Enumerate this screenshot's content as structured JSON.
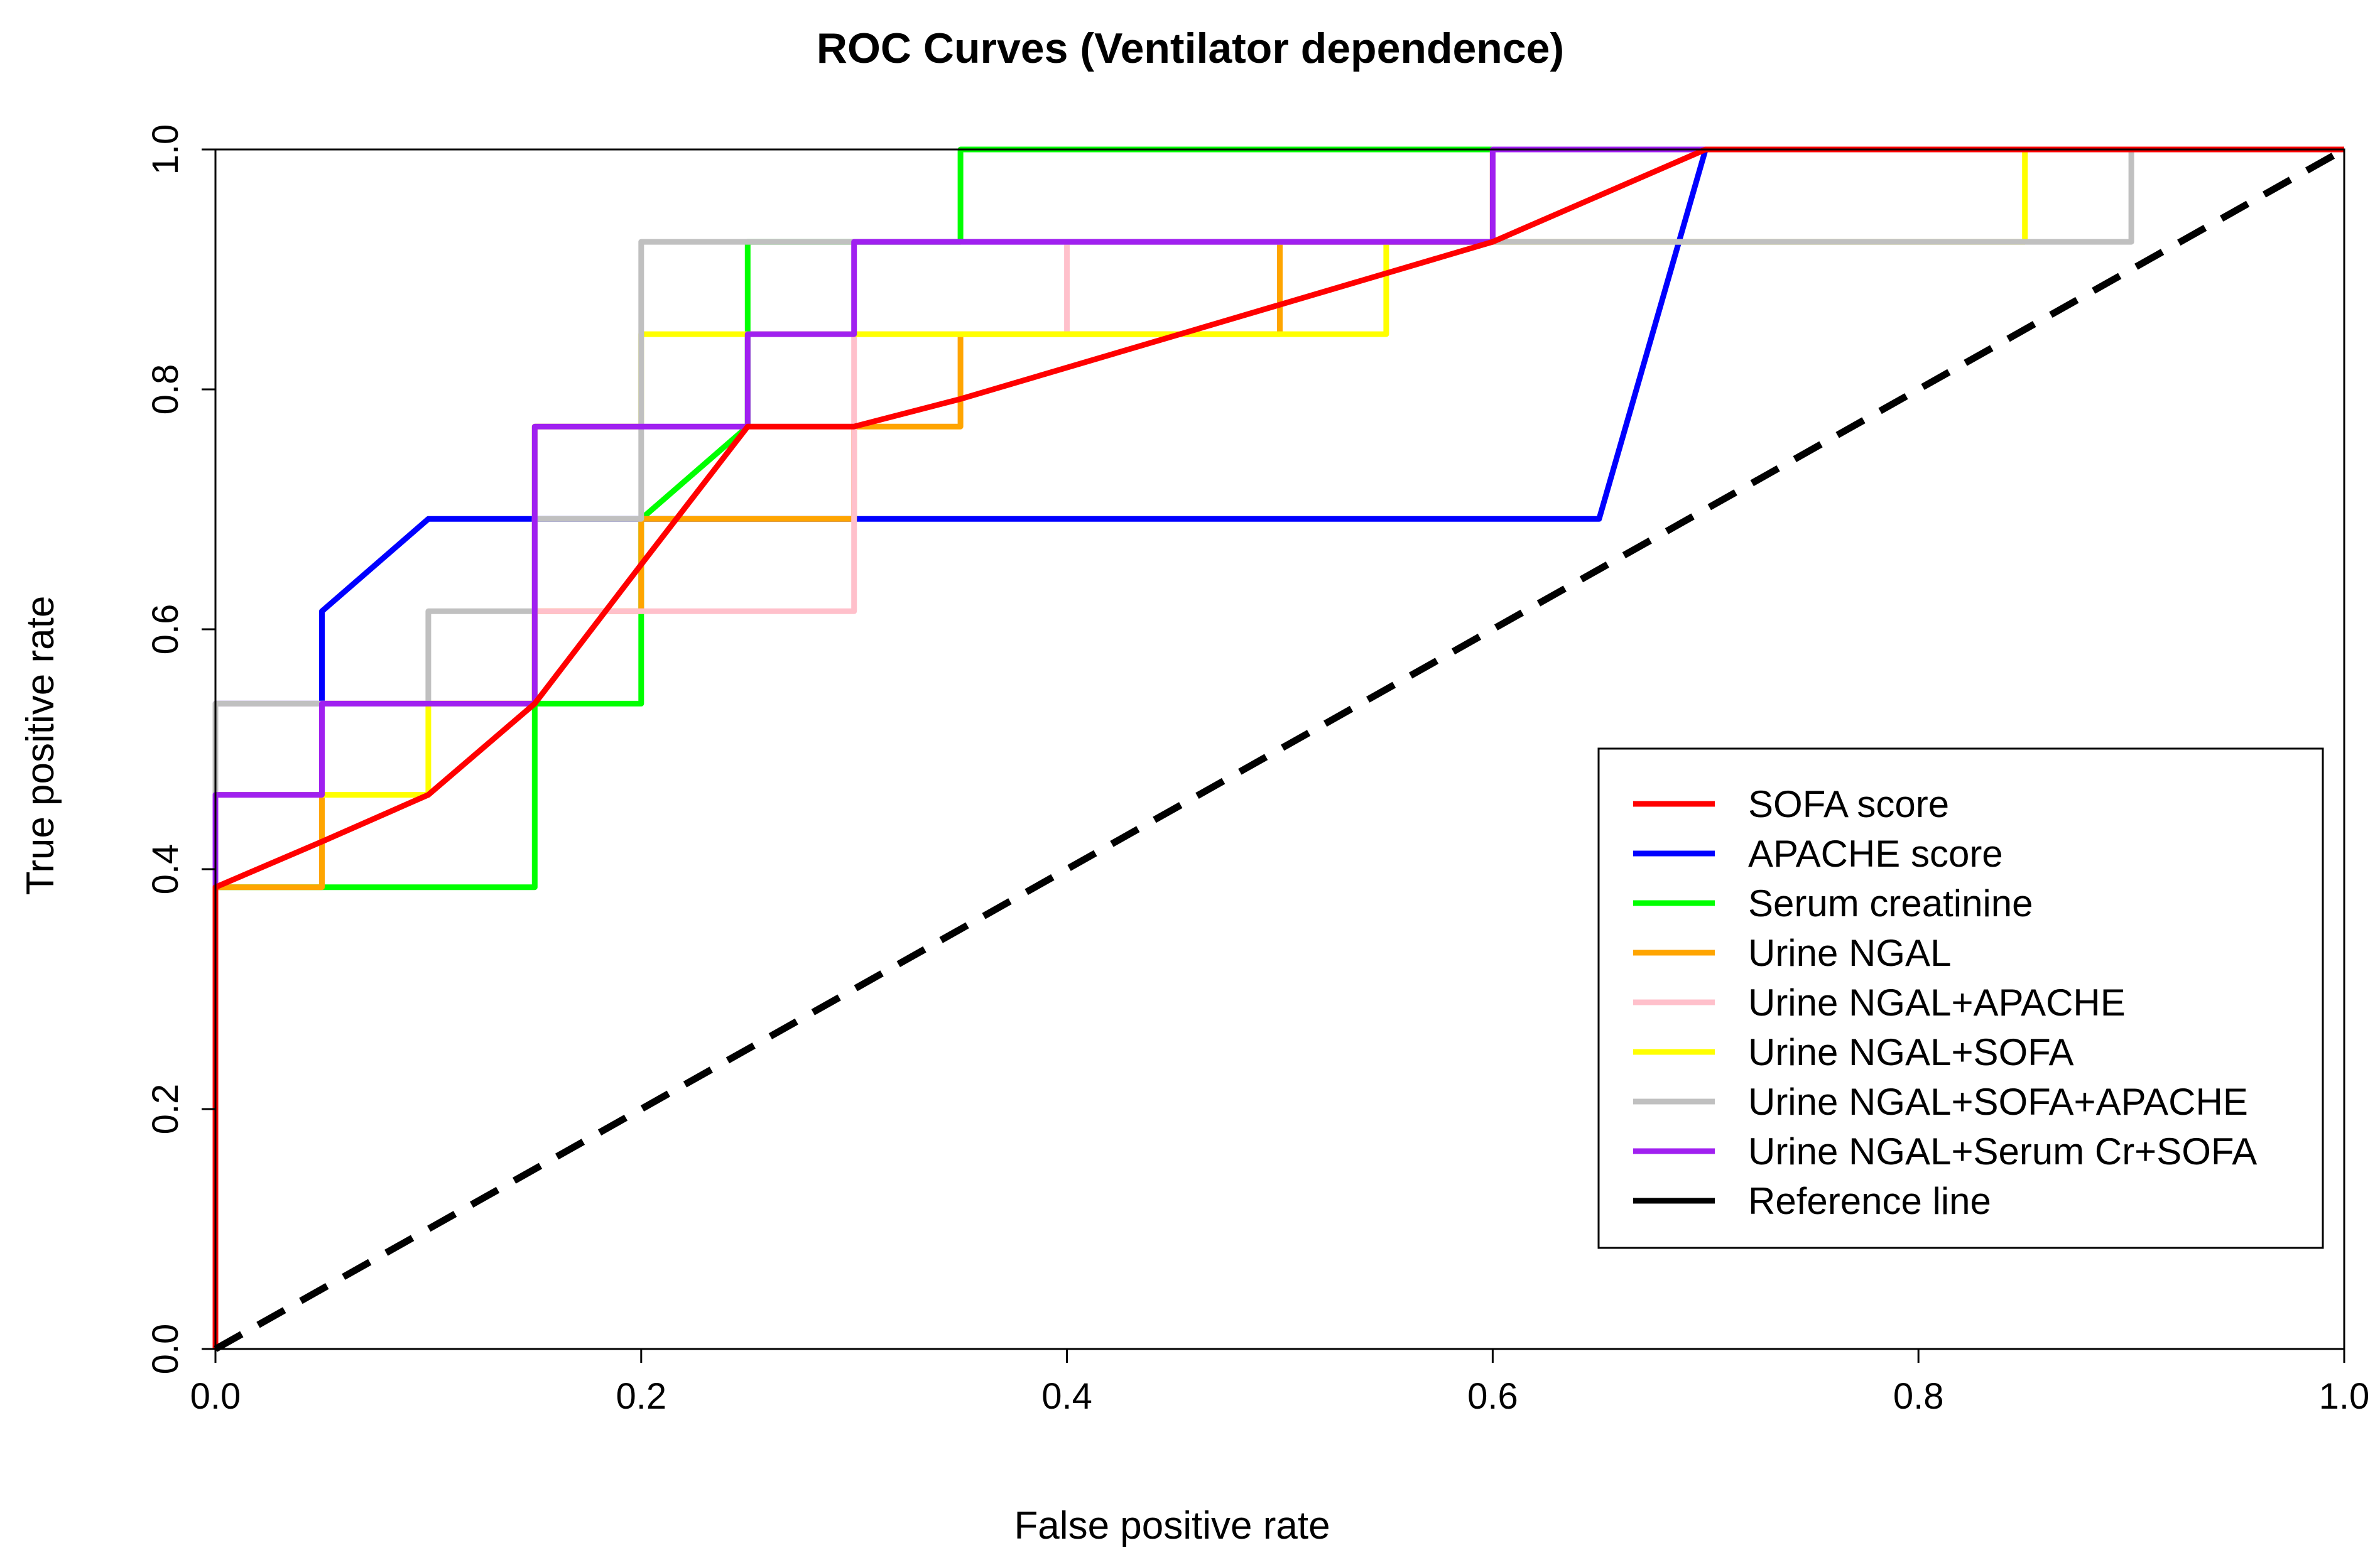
{
  "chart_data": {
    "type": "line",
    "title": "ROC Curves (Ventilator dependence)",
    "xlabel": "False positive rate",
    "ylabel": "True positive rate",
    "xlim": [
      0,
      1
    ],
    "ylim": [
      0,
      1
    ],
    "x_ticks": [
      "0.0",
      "0.2",
      "0.4",
      "0.6",
      "0.8",
      "1.0"
    ],
    "y_ticks": [
      "0.0",
      "0.2",
      "0.4",
      "0.6",
      "0.8",
      "1.0"
    ],
    "grid": false,
    "legend_position": "bottom-right",
    "series": [
      {
        "name": "SOFA score",
        "color": "#ff0000",
        "dash": false,
        "points": [
          [
            0,
            0
          ],
          [
            0,
            0.385
          ],
          [
            0.05,
            0.423
          ],
          [
            0.1,
            0.462
          ],
          [
            0.15,
            0.538
          ],
          [
            0.2,
            0.654
          ],
          [
            0.25,
            0.769
          ],
          [
            0.3,
            0.769
          ],
          [
            0.35,
            0.792
          ],
          [
            0.6,
            0.923
          ],
          [
            0.7,
            1
          ],
          [
            1,
            1
          ]
        ]
      },
      {
        "name": "APACHE score",
        "color": "#0000ff",
        "dash": false,
        "points": [
          [
            0,
            0
          ],
          [
            0,
            0.538
          ],
          [
            0.05,
            0.538
          ],
          [
            0.05,
            0.615
          ],
          [
            0.1,
            0.692
          ],
          [
            0.65,
            0.692
          ],
          [
            0.7,
            1
          ],
          [
            1,
            1
          ]
        ]
      },
      {
        "name": "Serum creatinine",
        "color": "#00ff00",
        "dash": false,
        "points": [
          [
            0,
            0
          ],
          [
            0,
            0.385
          ],
          [
            0.15,
            0.385
          ],
          [
            0.15,
            0.538
          ],
          [
            0.2,
            0.538
          ],
          [
            0.2,
            0.615
          ],
          [
            0.2,
            0.692
          ],
          [
            0.25,
            0.769
          ],
          [
            0.25,
            0.923
          ],
          [
            0.35,
            0.923
          ],
          [
            0.35,
            1
          ],
          [
            1,
            1
          ]
        ]
      },
      {
        "name": "Urine NGAL",
        "color": "#ffa500",
        "dash": false,
        "points": [
          [
            0,
            0
          ],
          [
            0,
            0.385
          ],
          [
            0.05,
            0.385
          ],
          [
            0.05,
            0.538
          ],
          [
            0.15,
            0.538
          ],
          [
            0.15,
            0.615
          ],
          [
            0.2,
            0.615
          ],
          [
            0.2,
            0.692
          ],
          [
            0.3,
            0.692
          ],
          [
            0.3,
            0.769
          ],
          [
            0.35,
            0.769
          ],
          [
            0.35,
            0.846
          ],
          [
            0.5,
            0.846
          ],
          [
            0.5,
            0.923
          ],
          [
            0.6,
            0.923
          ],
          [
            0.6,
            1
          ],
          [
            1,
            1
          ]
        ]
      },
      {
        "name": "Urine NGAL+APACHE",
        "color": "#ffc0cb",
        "dash": false,
        "points": [
          [
            0,
            0
          ],
          [
            0,
            0.538
          ],
          [
            0.15,
            0.538
          ],
          [
            0.15,
            0.615
          ],
          [
            0.3,
            0.615
          ],
          [
            0.3,
            0.846
          ],
          [
            0.4,
            0.846
          ],
          [
            0.4,
            0.923
          ],
          [
            0.6,
            0.923
          ],
          [
            0.6,
            1
          ],
          [
            1,
            1
          ]
        ]
      },
      {
        "name": "Urine NGAL+SOFA",
        "color": "#ffff00",
        "dash": false,
        "points": [
          [
            0,
            0
          ],
          [
            0,
            0.462
          ],
          [
            0.1,
            0.462
          ],
          [
            0.1,
            0.538
          ],
          [
            0.15,
            0.538
          ],
          [
            0.15,
            0.769
          ],
          [
            0.2,
            0.769
          ],
          [
            0.2,
            0.846
          ],
          [
            0.55,
            0.846
          ],
          [
            0.55,
            0.923
          ],
          [
            0.85,
            0.923
          ],
          [
            0.85,
            1
          ],
          [
            1,
            1
          ]
        ]
      },
      {
        "name": "Urine NGAL+SOFA+APACHE",
        "color": "#c0c0c0",
        "dash": false,
        "points": [
          [
            0,
            0
          ],
          [
            0,
            0.538
          ],
          [
            0.1,
            0.538
          ],
          [
            0.1,
            0.615
          ],
          [
            0.15,
            0.615
          ],
          [
            0.15,
            0.692
          ],
          [
            0.2,
            0.692
          ],
          [
            0.2,
            0.923
          ],
          [
            0.9,
            0.923
          ],
          [
            0.9,
            1
          ],
          [
            1,
            1
          ]
        ]
      },
      {
        "name": "Urine NGAL+Serum Cr+SOFA",
        "color": "#a020f0",
        "dash": false,
        "points": [
          [
            0,
            0
          ],
          [
            0,
            0.462
          ],
          [
            0.05,
            0.462
          ],
          [
            0.05,
            0.538
          ],
          [
            0.15,
            0.538
          ],
          [
            0.15,
            0.769
          ],
          [
            0.25,
            0.769
          ],
          [
            0.25,
            0.846
          ],
          [
            0.3,
            0.846
          ],
          [
            0.3,
            0.923
          ],
          [
            0.6,
            0.923
          ],
          [
            0.6,
            1
          ],
          [
            1,
            1
          ]
        ]
      },
      {
        "name": "Reference line",
        "color": "#000000",
        "dash": true,
        "points": [
          [
            0,
            0
          ],
          [
            1,
            1
          ]
        ]
      }
    ]
  }
}
